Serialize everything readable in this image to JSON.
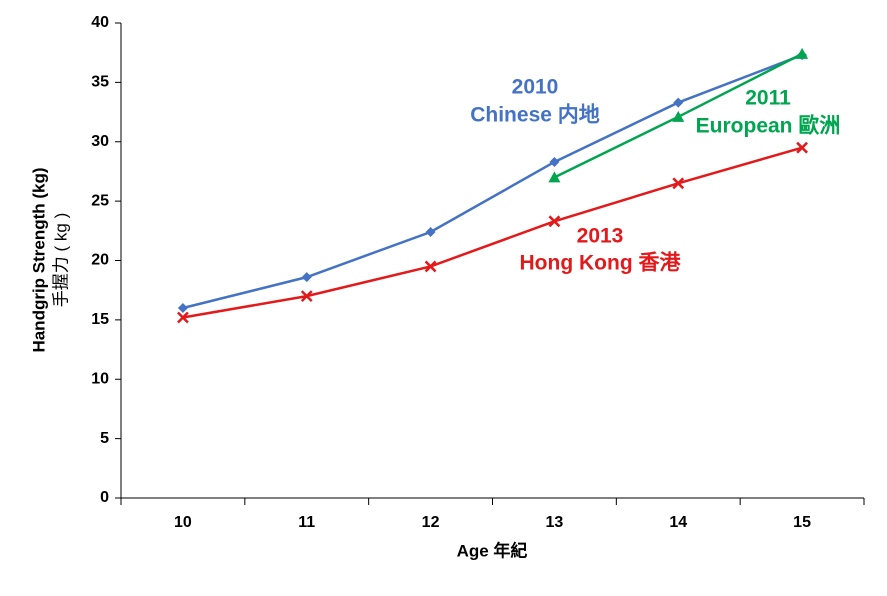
{
  "chart_data": {
    "type": "line",
    "x_label": "Age 年紀",
    "y_label": [
      "Handgrip Strength (kg)",
      "手握力 ( kg )"
    ],
    "categories": [
      "10",
      "11",
      "12",
      "13",
      "14",
      "15"
    ],
    "series": [
      {
        "year": "2010",
        "name": "Chinese 内地",
        "color": "#4472c4",
        "marker": "diamond",
        "values": [
          16.0,
          18.6,
          22.4,
          28.3,
          33.3,
          37.3
        ]
      },
      {
        "year": "2011",
        "name": "European 歐洲",
        "color": "#00a550",
        "marker": "triangle",
        "values": [
          null,
          null,
          null,
          27.0,
          32.1,
          37.4
        ]
      },
      {
        "year": "2013",
        "name": "Hong Kong 香港",
        "color": "#e31a1c",
        "marker": "x",
        "values": [
          15.2,
          17.0,
          19.5,
          23.3,
          26.5,
          29.5
        ]
      }
    ],
    "ylim": [
      0,
      40
    ],
    "yticks": [
      0,
      5,
      10,
      15,
      20,
      25,
      30,
      35,
      40
    ],
    "grid": false
  }
}
